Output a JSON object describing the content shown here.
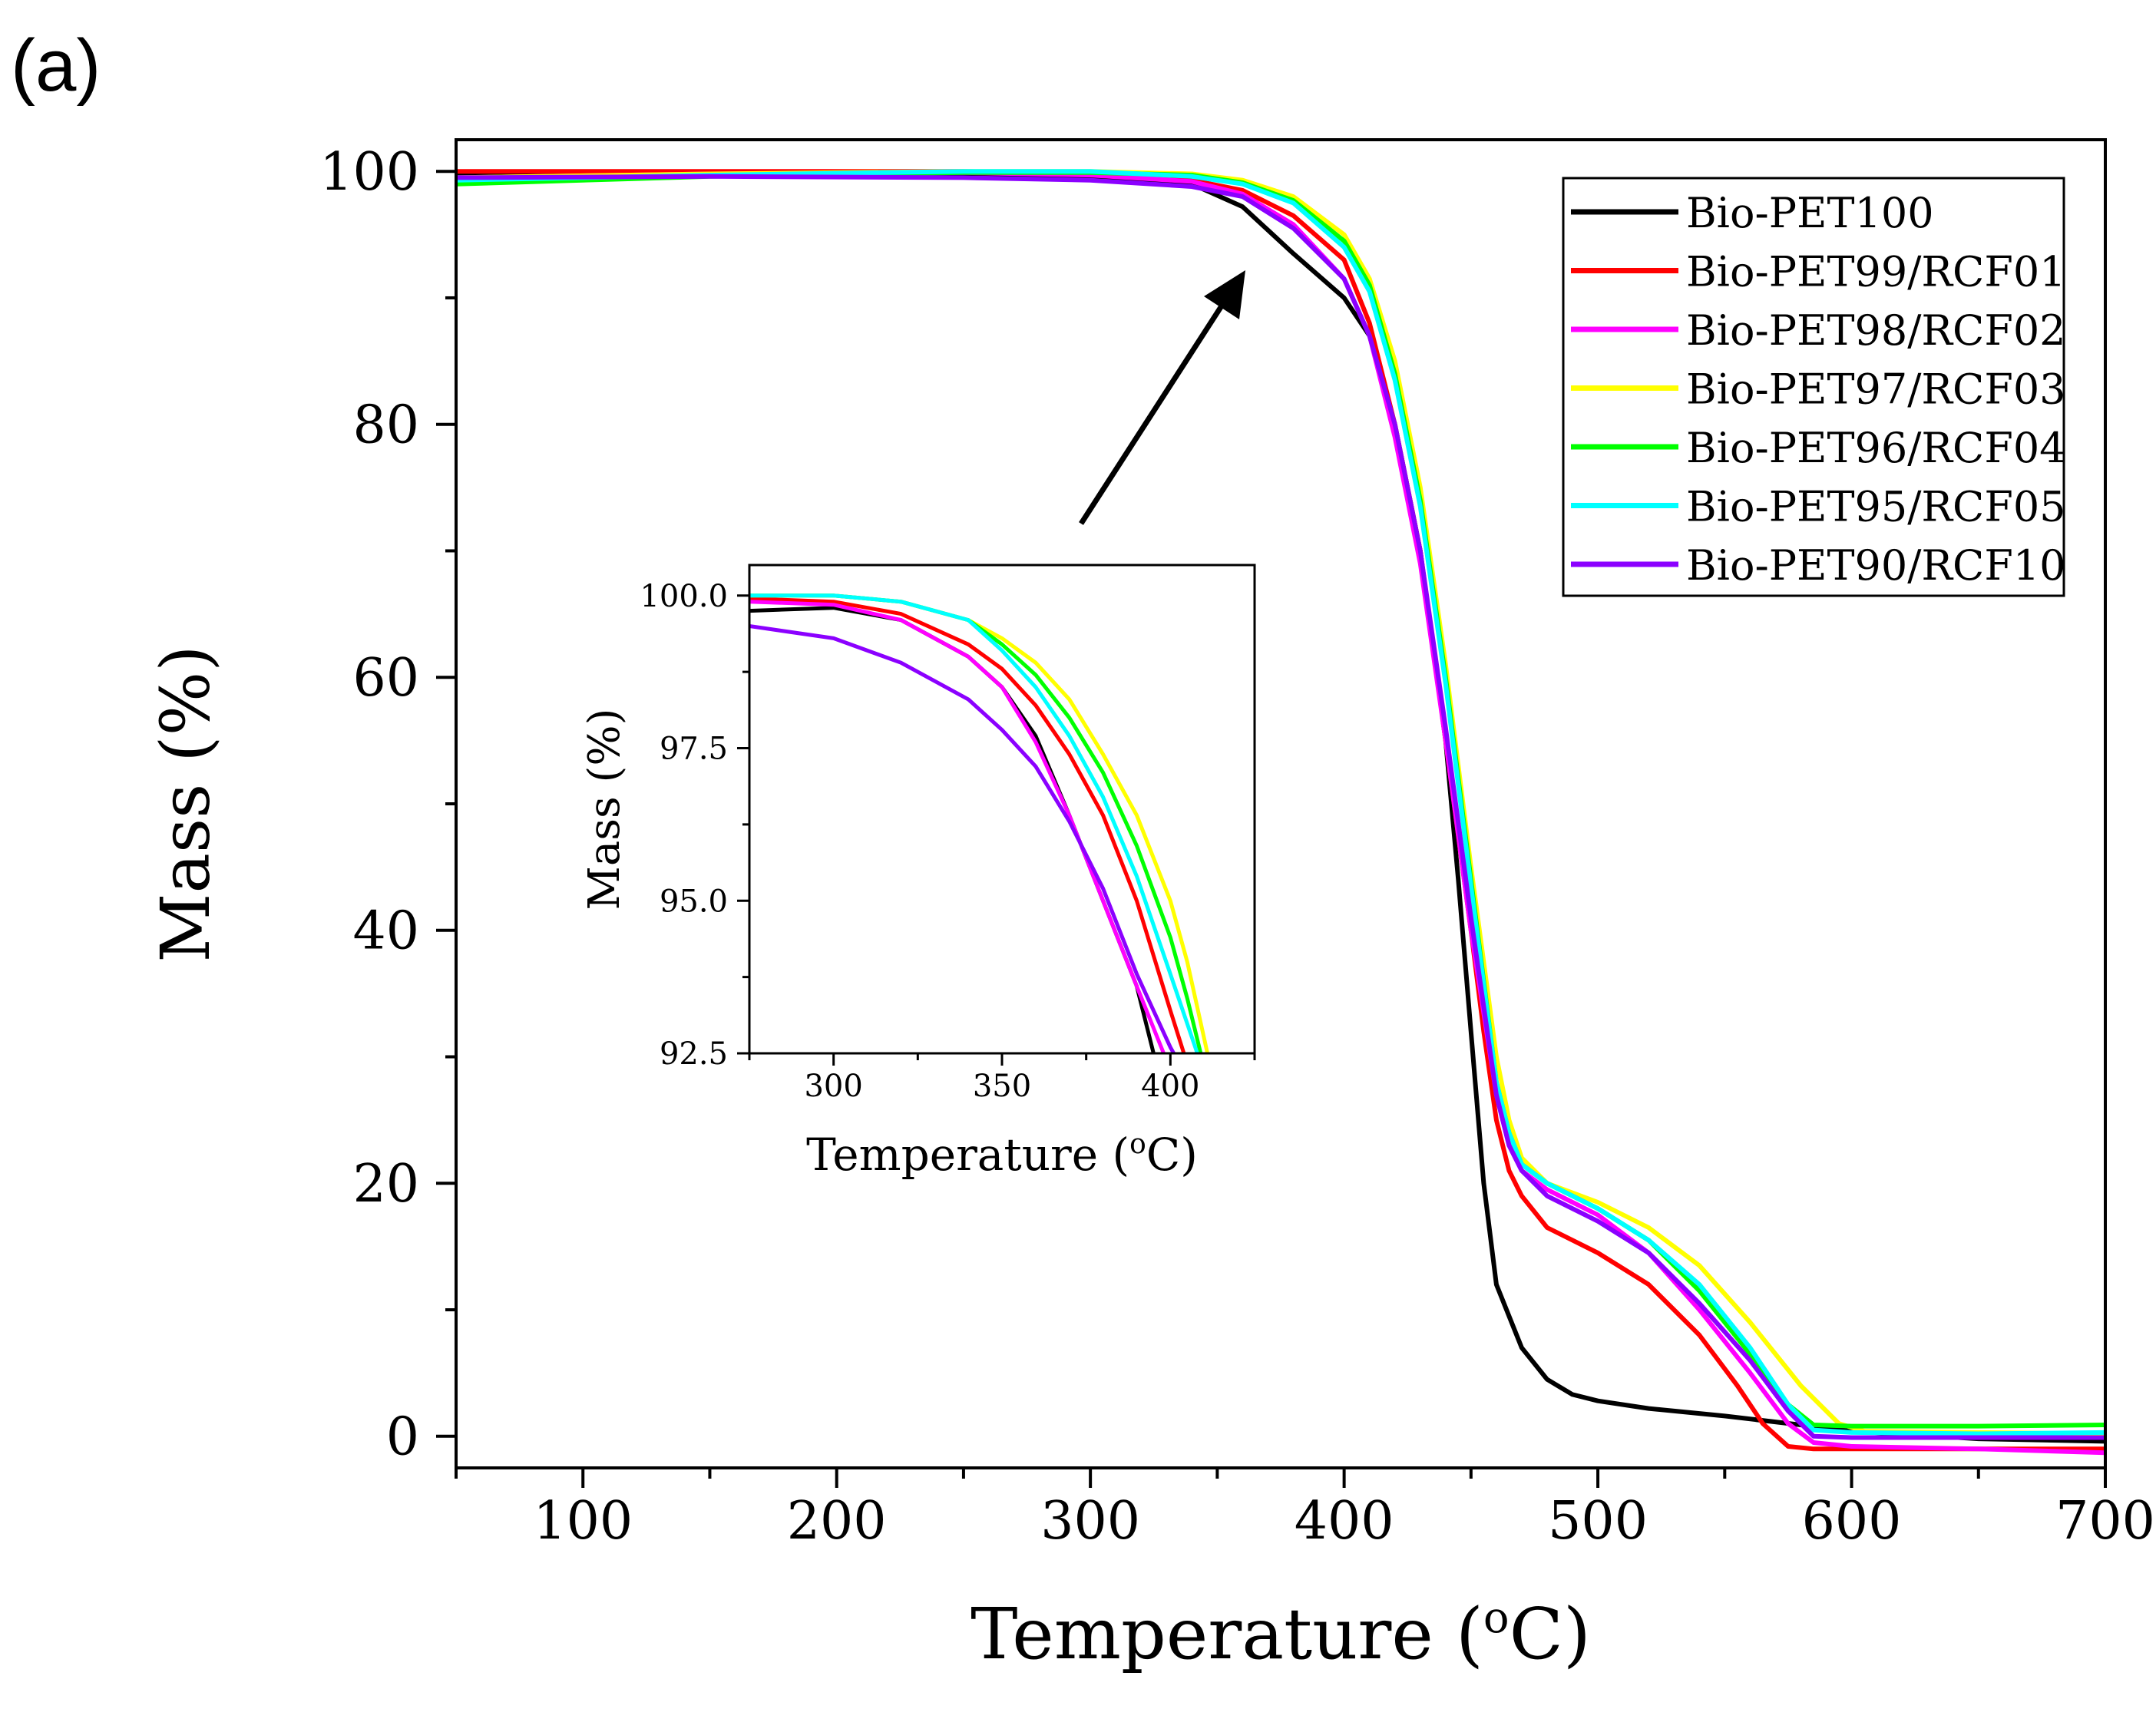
{
  "panel_label": "(a)",
  "chart_data": [
    {
      "type": "line",
      "role": "main",
      "xlabel": "Temperature (",
      "xlabel_sup": "o",
      "xlabel_unit": "C)",
      "ylabel": "Mass (%)",
      "xlim": [
        50,
        700
      ],
      "ylim": [
        -2.5,
        102.5
      ],
      "xticks": [
        100,
        200,
        300,
        400,
        500,
        600,
        700
      ],
      "yticks": [
        0,
        20,
        40,
        60,
        80,
        100
      ],
      "grid": false,
      "legend_position": "top-right",
      "series": [
        {
          "name": "Bio-PET100",
          "color": "#000000",
          "x": [
            50,
            150,
            250,
            300,
            340,
            360,
            380,
            400,
            410,
            420,
            430,
            440,
            445,
            450,
            455,
            460,
            470,
            480,
            490,
            500,
            520,
            550,
            580,
            600,
            650,
            700
          ],
          "y": [
            99.8,
            99.9,
            99.8,
            99.6,
            99.0,
            97.2,
            93.5,
            90.0,
            87.0,
            80.0,
            70.0,
            55.0,
            44.0,
            32.0,
            20.0,
            12.0,
            7.0,
            4.5,
            3.3,
            2.8,
            2.2,
            1.6,
            0.9,
            0.4,
            -0.2,
            -0.4
          ]
        },
        {
          "name": "Bio-PET99/RCF01",
          "color": "#ff0000",
          "x": [
            50,
            150,
            250,
            300,
            340,
            360,
            380,
            400,
            410,
            420,
            430,
            440,
            450,
            455,
            460,
            465,
            470,
            480,
            500,
            520,
            540,
            555,
            565,
            575,
            585,
            600,
            650,
            700
          ],
          "y": [
            100.0,
            100.0,
            100.0,
            99.8,
            99.3,
            98.5,
            96.5,
            93.0,
            88.0,
            80.0,
            70.0,
            55.0,
            40.0,
            32.0,
            25.0,
            21.0,
            19.0,
            16.5,
            14.5,
            12.0,
            8.0,
            4.0,
            1.0,
            -0.8,
            -1.0,
            -1.0,
            -1.0,
            -1.0
          ]
        },
        {
          "name": "Bio-PET98/RCF02",
          "color": "#ff00ff",
          "x": [
            50,
            150,
            250,
            300,
            340,
            360,
            380,
            400,
            410,
            420,
            430,
            440,
            450,
            460,
            465,
            470,
            480,
            500,
            520,
            540,
            560,
            575,
            585,
            600,
            650,
            700
          ],
          "y": [
            99.5,
            99.8,
            99.9,
            99.7,
            99.2,
            98.2,
            95.8,
            91.5,
            87.0,
            79.0,
            69.0,
            55.0,
            40.0,
            27.0,
            23.0,
            21.0,
            19.5,
            17.5,
            14.5,
            10.0,
            5.0,
            1.0,
            -0.5,
            -0.8,
            -1.0,
            -1.3
          ]
        },
        {
          "name": "Bio-PET97/RCF03",
          "color": "#ffff00",
          "x": [
            50,
            150,
            250,
            300,
            340,
            360,
            380,
            400,
            410,
            420,
            430,
            440,
            450,
            460,
            465,
            470,
            480,
            500,
            520,
            540,
            560,
            580,
            595,
            605,
            650,
            700
          ],
          "y": [
            99.5,
            99.8,
            100.0,
            100.0,
            99.8,
            99.3,
            98.0,
            95.0,
            91.5,
            85.0,
            75.0,
            61.0,
            45.0,
            30.0,
            25.0,
            22.0,
            20.0,
            18.5,
            16.5,
            13.5,
            9.0,
            4.0,
            1.0,
            0.4,
            0.3,
            0.2
          ]
        },
        {
          "name": "Bio-PET96/RCF04",
          "color": "#00ff00",
          "x": [
            50,
            150,
            250,
            300,
            340,
            360,
            380,
            400,
            410,
            420,
            430,
            440,
            450,
            460,
            465,
            470,
            480,
            500,
            520,
            540,
            560,
            575,
            585,
            600,
            650,
            700
          ],
          "y": [
            99.0,
            99.6,
            99.9,
            99.9,
            99.7,
            99.1,
            97.7,
            94.5,
            91.0,
            84.0,
            74.0,
            60.0,
            44.0,
            28.0,
            24.0,
            21.5,
            20.0,
            18.0,
            15.5,
            11.5,
            6.5,
            2.5,
            0.9,
            0.8,
            0.8,
            0.9
          ]
        },
        {
          "name": "Bio-PET95/RCF05",
          "color": "#00ffff",
          "x": [
            50,
            150,
            250,
            300,
            340,
            360,
            380,
            400,
            410,
            420,
            430,
            440,
            450,
            460,
            465,
            470,
            480,
            500,
            520,
            540,
            560,
            575,
            585,
            600,
            650,
            700
          ],
          "y": [
            99.3,
            99.7,
            100.0,
            100.0,
            99.6,
            99.0,
            97.5,
            94.0,
            90.5,
            83.5,
            73.5,
            59.5,
            43.5,
            28.0,
            24.0,
            21.5,
            20.0,
            18.0,
            15.5,
            12.0,
            7.0,
            2.5,
            0.5,
            0.3,
            0.2,
            0.3
          ]
        },
        {
          "name": "Bio-PET90/RCF10",
          "color": "#8b00ff",
          "x": [
            50,
            150,
            250,
            300,
            340,
            360,
            380,
            400,
            410,
            420,
            430,
            440,
            450,
            460,
            465,
            470,
            480,
            500,
            520,
            540,
            560,
            575,
            585,
            600,
            650,
            700
          ],
          "y": [
            99.5,
            99.6,
            99.5,
            99.3,
            98.8,
            98.0,
            95.5,
            91.5,
            87.0,
            80.0,
            70.0,
            56.0,
            41.0,
            27.0,
            23.0,
            21.0,
            19.0,
            17.0,
            14.5,
            10.5,
            6.0,
            2.0,
            0.0,
            -0.1,
            -0.1,
            -0.1
          ]
        }
      ]
    },
    {
      "type": "line",
      "role": "inset",
      "xlabel": "Temperature (",
      "xlabel_sup": "o",
      "xlabel_unit": "C)",
      "ylabel": "Mass (%)",
      "xlim": [
        275,
        425
      ],
      "ylim": [
        92.5,
        100.5
      ],
      "xticks": [
        300,
        350,
        400
      ],
      "yticks": [
        92.5,
        95.0,
        97.5,
        100.0
      ],
      "ytick_labels": [
        "92.5",
        "95.0",
        "97.5",
        "100.0"
      ],
      "grid": false,
      "series": [
        {
          "name": "Bio-PET100",
          "color": "#000000",
          "x": [
            275,
            300,
            320,
            340,
            350,
            360,
            370,
            380,
            390,
            395
          ],
          "y": [
            99.75,
            99.8,
            99.6,
            99.0,
            98.5,
            97.7,
            96.4,
            95.0,
            93.6,
            92.5
          ]
        },
        {
          "name": "Bio-PET99/RCF01",
          "color": "#ff0000",
          "x": [
            275,
            300,
            320,
            340,
            350,
            360,
            370,
            380,
            390,
            400,
            404
          ],
          "y": [
            99.95,
            99.9,
            99.7,
            99.2,
            98.8,
            98.2,
            97.4,
            96.4,
            95.0,
            93.2,
            92.5
          ]
        },
        {
          "name": "Bio-PET98/RCF02",
          "color": "#ff00ff",
          "x": [
            275,
            300,
            320,
            340,
            350,
            360,
            370,
            380,
            390,
            398
          ],
          "y": [
            99.9,
            99.85,
            99.6,
            99.0,
            98.5,
            97.6,
            96.4,
            95.0,
            93.6,
            92.5
          ]
        },
        {
          "name": "Bio-PET97/RCF03",
          "color": "#ffff00",
          "x": [
            275,
            300,
            320,
            340,
            350,
            360,
            370,
            380,
            390,
            400,
            405,
            411
          ],
          "y": [
            100.0,
            100.0,
            99.9,
            99.6,
            99.3,
            98.9,
            98.3,
            97.4,
            96.4,
            95.0,
            94.0,
            92.5
          ]
        },
        {
          "name": "Bio-PET96/RCF04",
          "color": "#00ff00",
          "x": [
            275,
            300,
            320,
            340,
            350,
            360,
            370,
            380,
            390,
            400,
            405,
            409
          ],
          "y": [
            100.0,
            100.0,
            99.9,
            99.6,
            99.2,
            98.7,
            98.0,
            97.1,
            95.9,
            94.4,
            93.4,
            92.5
          ]
        },
        {
          "name": "Bio-PET95/RCF05",
          "color": "#00ffff",
          "x": [
            275,
            300,
            320,
            340,
            350,
            360,
            370,
            380,
            390,
            400,
            408
          ],
          "y": [
            100.0,
            100.0,
            99.9,
            99.6,
            99.1,
            98.5,
            97.7,
            96.7,
            95.4,
            93.8,
            92.5
          ]
        },
        {
          "name": "Bio-PET90/RCF10",
          "color": "#8b00ff",
          "x": [
            275,
            300,
            320,
            340,
            350,
            360,
            370,
            380,
            390,
            400,
            401
          ],
          "y": [
            99.5,
            99.3,
            98.9,
            98.3,
            97.8,
            97.2,
            96.3,
            95.2,
            93.8,
            92.6,
            92.5
          ]
        }
      ]
    }
  ]
}
